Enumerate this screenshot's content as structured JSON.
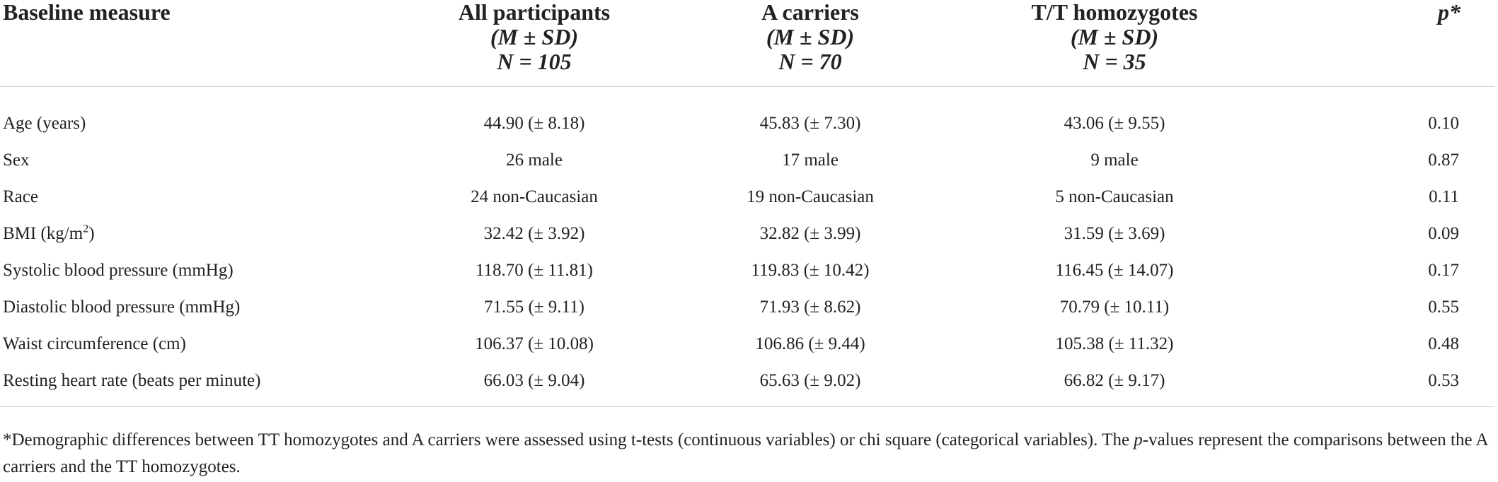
{
  "table": {
    "headers": [
      {
        "lines": [
          "Baseline measure"
        ]
      },
      {
        "lines": [
          "All participants",
          "(M ± SD)",
          "N = 105"
        ]
      },
      {
        "lines": [
          "A carriers",
          "(M ± SD)",
          "N = 70"
        ]
      },
      {
        "lines": [
          "T/T homozygotes",
          "(M ± SD)",
          "N = 35"
        ]
      },
      {
        "lines": [
          "p*"
        ]
      }
    ],
    "rows": [
      {
        "measure": "Age (years)",
        "all": "44.90 (± 8.18)",
        "a_carriers": "45.83 (± 7.30)",
        "tt": "43.06 (± 9.55)",
        "p": "0.10"
      },
      {
        "measure": "Sex",
        "all": "26 male",
        "a_carriers": "17 male",
        "tt": "9 male",
        "p": "0.87"
      },
      {
        "measure": "Race",
        "all": "24 non-Caucasian",
        "a_carriers": "19 non-Caucasian",
        "tt": "5 non-Caucasian",
        "p": "0.11"
      },
      {
        "measure": "BMI (kg/m",
        "measure_sup": "2",
        "measure_tail": ")",
        "all": "32.42 (± 3.92)",
        "a_carriers": "32.82 (± 3.99)",
        "tt": "31.59 (± 3.69)",
        "p": "0.09"
      },
      {
        "measure": "Systolic blood pressure (mmHg)",
        "all": "118.70 (± 11.81)",
        "a_carriers": "119.83 (± 10.42)",
        "tt": "116.45 (± 14.07)",
        "p": "0.17"
      },
      {
        "measure": "Diastolic blood pressure (mmHg)",
        "all": "71.55 (± 9.11)",
        "a_carriers": "71.93 (± 8.62)",
        "tt": "70.79 (± 10.11)",
        "p": "0.55"
      },
      {
        "measure": "Waist circumference (cm)",
        "all": "106.37 (± 10.08)",
        "a_carriers": "106.86 (± 9.44)",
        "tt": "105.38 (± 11.32)",
        "p": "0.48"
      },
      {
        "measure": "Resting heart rate (beats per minute)",
        "all": "66.03 (± 9.04)",
        "a_carriers": "65.63 (± 9.02)",
        "tt": "66.82 (± 9.17)",
        "p": "0.53"
      }
    ]
  },
  "footnote": {
    "part1": "*Demographic differences between TT homozygotes and A carriers were assessed using t-tests (continuous variables) or chi square (categorical variables). The ",
    "italic": "p",
    "part2": "-values represent the comparisons between the A carriers and the TT homozygotes."
  }
}
